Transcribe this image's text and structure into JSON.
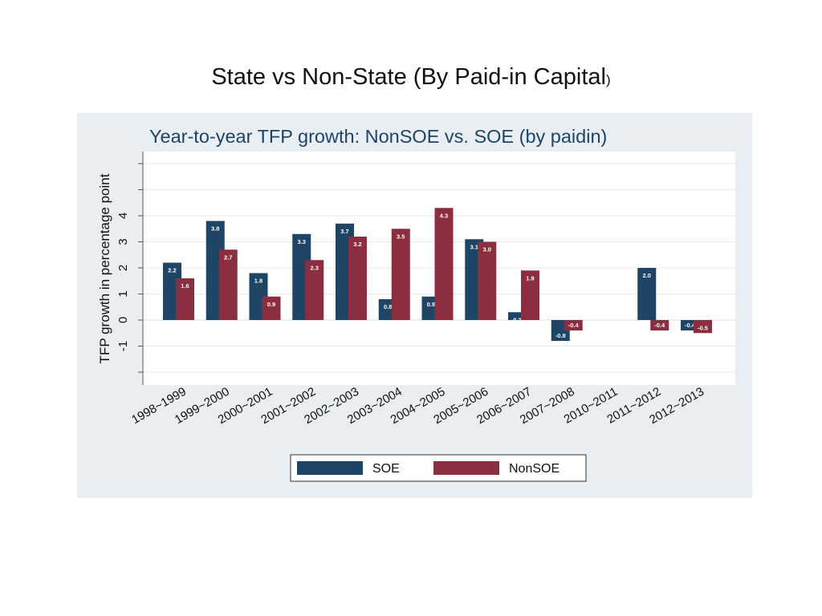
{
  "slide": {
    "title": "State vs Non-State (By Paid-in Capital",
    "title_paren": ")"
  },
  "colors": {
    "SOE": "#1e4466",
    "NonSOE": "#8b2f40",
    "panel_bg": "#e9eef2",
    "plot_bg": "#ffffff",
    "grid": "#e6eaee",
    "title": "#1e4466"
  },
  "chart_data": {
    "type": "bar",
    "title": "Year-to-year TFP growth: NonSOE vs. SOE (by paidin)",
    "xlabel": "",
    "ylabel": "TFP growth in percentage point",
    "ylim": [
      -2,
      6.5
    ],
    "yticks": [
      -1,
      0,
      1,
      2,
      3,
      4
    ],
    "grid": true,
    "legend_position": "bottom",
    "categories": [
      "1998~1999",
      "1999~2000",
      "2000~2001",
      "2001~2002",
      "2002~2003",
      "2003~2004",
      "2004~2005",
      "2005~2006",
      "2006~2007",
      "2007~2008",
      "2010~2011",
      "2011~2012",
      "2012~2013"
    ],
    "series": [
      {
        "name": "SOE",
        "values": [
          2.2,
          3.8,
          1.8,
          3.3,
          3.7,
          0.8,
          0.9,
          3.1,
          0.3,
          -0.8,
          null,
          2.0,
          -0.4
        ],
        "labels": [
          "2.2",
          "3.8",
          "1.8",
          "3.3",
          "3.7",
          "0.8",
          "0.9",
          "3.1",
          "0.3",
          "-0.8",
          "",
          "2.0",
          "-0.4"
        ]
      },
      {
        "name": "NonSOE",
        "values": [
          1.6,
          2.7,
          0.9,
          2.3,
          3.2,
          3.5,
          4.3,
          3.0,
          1.9,
          -0.4,
          null,
          -0.4,
          -0.5
        ],
        "labels": [
          "1.6",
          "2.7",
          "0.9",
          "2.3",
          "3.2",
          "3.5",
          "4.3",
          "3.0",
          "1.9",
          "-0.4",
          "",
          "-0.4",
          "-0.5"
        ]
      }
    ]
  }
}
